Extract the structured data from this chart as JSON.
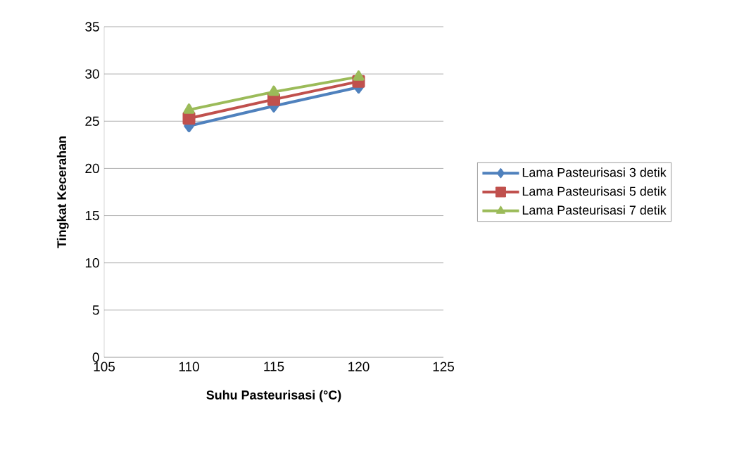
{
  "chart_data": {
    "type": "line",
    "xlabel": "Suhu Pasteurisasi (°C)",
    "ylabel": "Tingkat Kecerahan",
    "x": [
      110,
      115,
      120
    ],
    "series": [
      {
        "name": "Lama Pasteurisasi 3 detik",
        "color": "#4f81bd",
        "marker": "diamond",
        "values": [
          24.5,
          26.6,
          28.6
        ]
      },
      {
        "name": "Lama Pasteurisasi 5 detik",
        "color": "#c0504d",
        "marker": "square",
        "values": [
          25.3,
          27.3,
          29.2
        ]
      },
      {
        "name": "Lama Pasteurisasi 7 detik",
        "color": "#9bbb59",
        "marker": "triangle",
        "values": [
          26.2,
          28.1,
          29.7
        ]
      }
    ],
    "xlim": [
      105,
      125
    ],
    "xticks": [
      105,
      110,
      115,
      120,
      125
    ],
    "ylim": [
      0,
      35
    ],
    "yticks": [
      0,
      5,
      10,
      15,
      20,
      25,
      30,
      35
    ],
    "grid": "y",
    "legend": "right",
    "line_style": "solid"
  }
}
